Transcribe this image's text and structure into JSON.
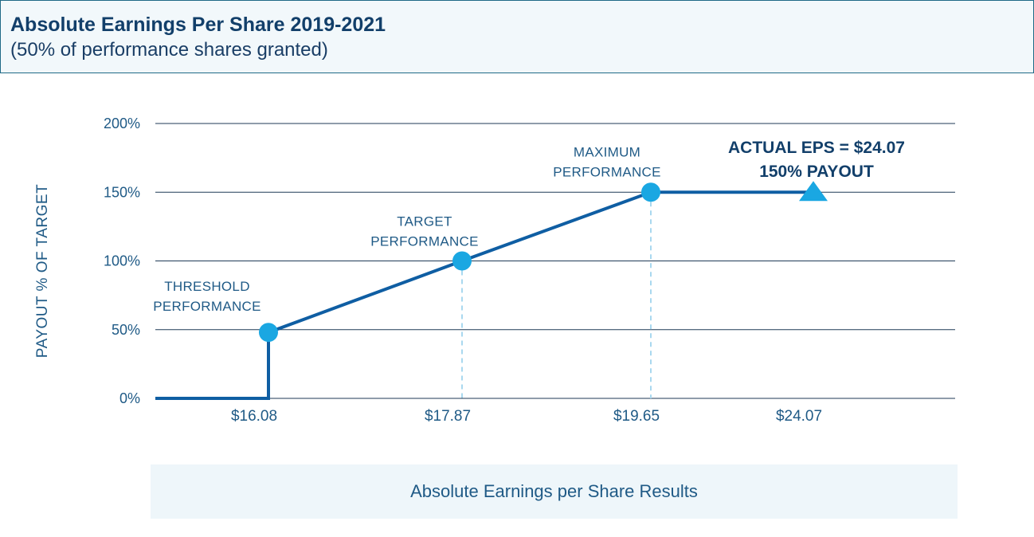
{
  "header": {
    "title": "Absolute Earnings Per Share 2019-2021",
    "subtitle": "(50% of performance shares granted)"
  },
  "colors": {
    "line": "#0f5ea3",
    "point": "#1aa7e2",
    "text": "#1f5a86",
    "grid": "#1f3a56",
    "dash": "#a9d8ef"
  },
  "chart_data": {
    "type": "line",
    "title": "Absolute Earnings Per Share 2019-2021",
    "xlabel": "Absolute Earnings per Share Results",
    "ylabel": "PAYOUT % OF TARGET",
    "ylim": [
      0,
      200
    ],
    "y_ticks": [
      0,
      50,
      100,
      150,
      200
    ],
    "y_tick_labels": [
      "0%",
      "50%",
      "100%",
      "150%",
      "200%"
    ],
    "x_categories": [
      "$16.08",
      "$17.87",
      "$19.65",
      "$24.07"
    ],
    "series": [
      {
        "name": "Payout curve",
        "points": [
          {
            "x": "start",
            "y": 0
          },
          {
            "x": "$16.08",
            "y": 0
          },
          {
            "x": "$16.08",
            "y": 48
          },
          {
            "x": "$17.87",
            "y": 100
          },
          {
            "x": "$19.65",
            "y": 150
          },
          {
            "x": "$24.07",
            "y": 150
          }
        ]
      }
    ],
    "markers": [
      {
        "x": "$16.08",
        "y": 48,
        "label_lines": [
          "THRESHOLD",
          "PERFORMANCE"
        ]
      },
      {
        "x": "$17.87",
        "y": 100,
        "label_lines": [
          "TARGET",
          "PERFORMANCE"
        ]
      },
      {
        "x": "$19.65",
        "y": 150,
        "label_lines": [
          "MAXIMUM",
          "PERFORMANCE"
        ]
      }
    ],
    "actual": {
      "x": "$24.07",
      "y": 150,
      "label_lines": [
        "ACTUAL EPS = $24.07",
        "150% PAYOUT"
      ]
    }
  }
}
